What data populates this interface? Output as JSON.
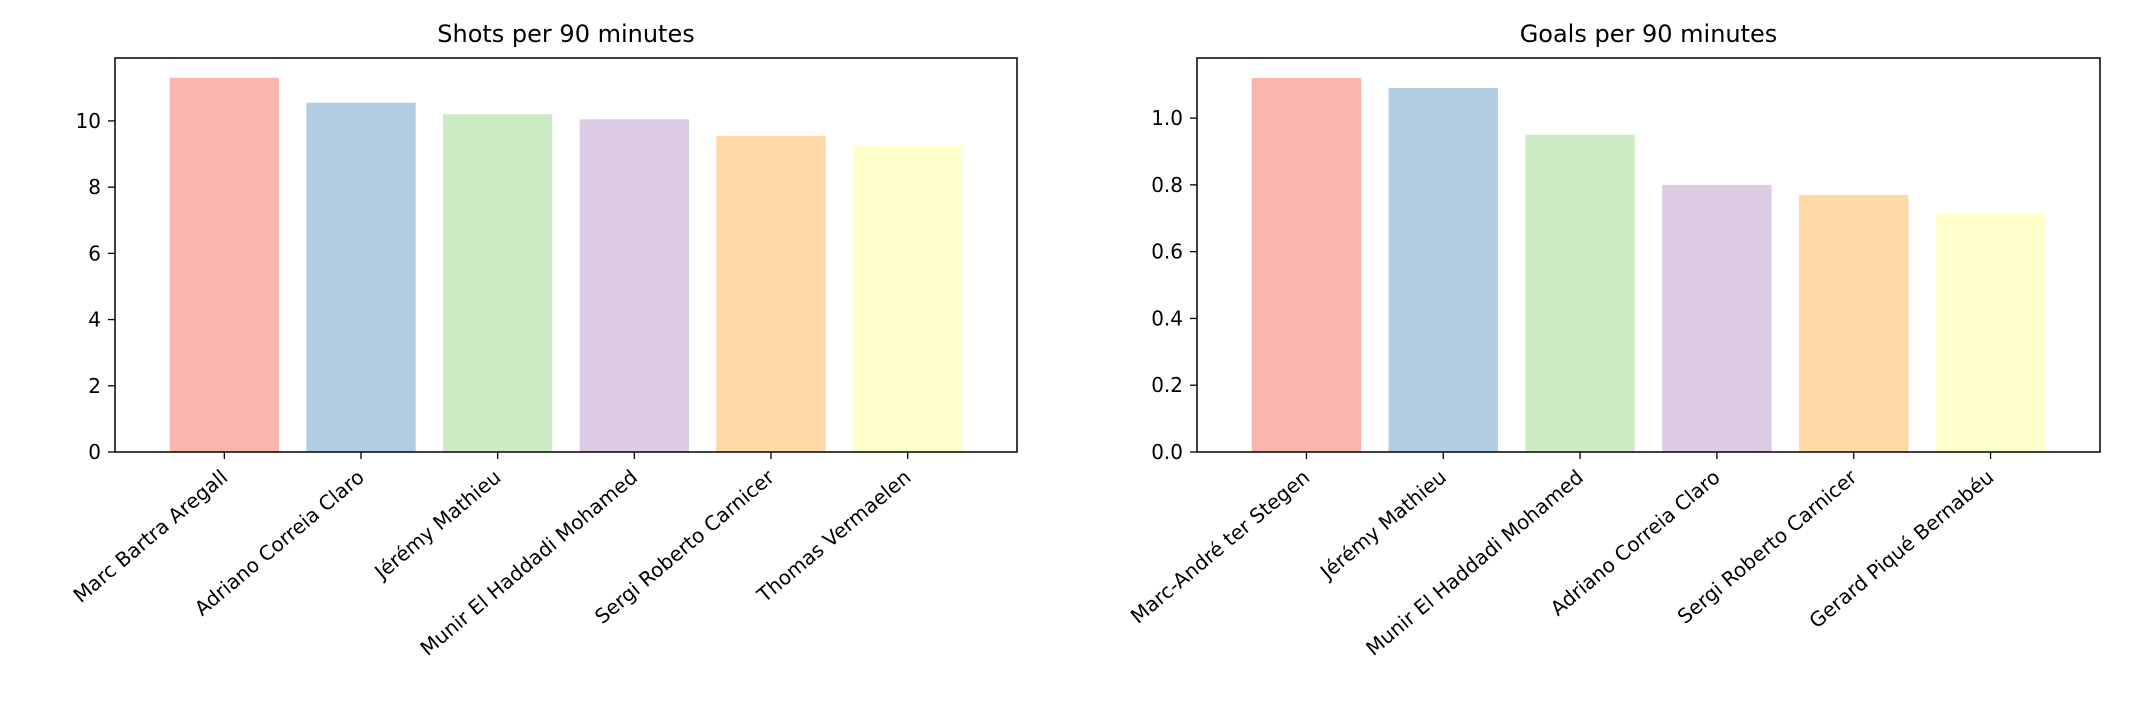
{
  "chart_data": [
    {
      "type": "bar",
      "title": "Shots per 90 minutes",
      "xlabel": "",
      "ylabel": "",
      "categories": [
        "Marc Bartra Aregall",
        "Adriano Correia Claro",
        "Jérémy Mathieu",
        "Munir El Haddadi Mohamed",
        "Sergi Roberto Carnicer",
        "Thomas Vermaelen"
      ],
      "values": [
        11.3,
        10.55,
        10.2,
        10.05,
        9.55,
        9.25
      ],
      "ylim": [
        0,
        11.9
      ],
      "yticks": [
        0,
        2,
        4,
        6,
        8,
        10
      ],
      "ytick_labels": [
        "0",
        "2",
        "4",
        "6",
        "8",
        "10"
      ],
      "colors": [
        "#fbb4ae",
        "#b3cde3",
        "#ccebc5",
        "#decbe4",
        "#fed9a6",
        "#ffffcc"
      ],
      "grid": false
    },
    {
      "type": "bar",
      "title": "Goals per 90 minutes",
      "xlabel": "",
      "ylabel": "",
      "categories": [
        "Marc-André ter Stegen",
        "Jérémy Mathieu",
        "Munir El Haddadi Mohamed",
        "Adriano Correia Claro",
        "Sergi Roberto Carnicer",
        "Gerard Piqué Bernabéu"
      ],
      "values": [
        1.12,
        1.09,
        0.95,
        0.8,
        0.77,
        0.715
      ],
      "ylim": [
        0,
        1.18
      ],
      "yticks": [
        0,
        0.2,
        0.4,
        0.6,
        0.8,
        1.0
      ],
      "ytick_labels": [
        "0.0",
        "0.2",
        "0.4",
        "0.6",
        "0.8",
        "1.0"
      ],
      "colors": [
        "#fbb4ae",
        "#b3cde3",
        "#ccebc5",
        "#decbe4",
        "#fed9a6",
        "#ffffcc"
      ],
      "grid": false
    }
  ]
}
